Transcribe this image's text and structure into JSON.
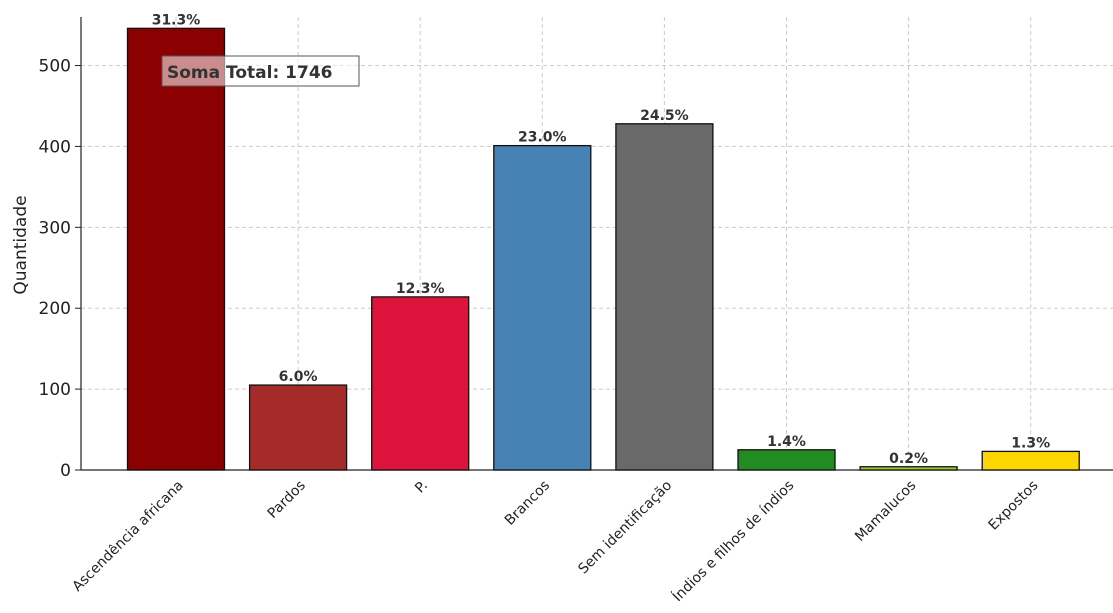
{
  "chart_data": {
    "type": "bar",
    "title": "",
    "xlabel": "",
    "ylabel": "Quantidade",
    "ylim": [
      0,
      560
    ],
    "yticks": [
      0,
      100,
      200,
      300,
      400,
      500
    ],
    "grid": true,
    "categories": [
      "Ascendência africana",
      "Pardos",
      "P.",
      "Brancos",
      "Sem identificação",
      "Índios e filhos de índios",
      "Mamalucos",
      "Expostos"
    ],
    "values": [
      546,
      105,
      214,
      401,
      428,
      25,
      4,
      23
    ],
    "percent_labels": [
      "31.3%",
      "6.0%",
      "12.3%",
      "23.0%",
      "24.5%",
      "1.4%",
      "0.2%",
      "1.3%"
    ],
    "colors": [
      "#8B0000",
      "#A52A2A",
      "#DC143C",
      "#4682B4",
      "#696969",
      "#228B22",
      "#9ACD32",
      "#FFD700"
    ],
    "annotation": "Soma Total: 1746"
  }
}
